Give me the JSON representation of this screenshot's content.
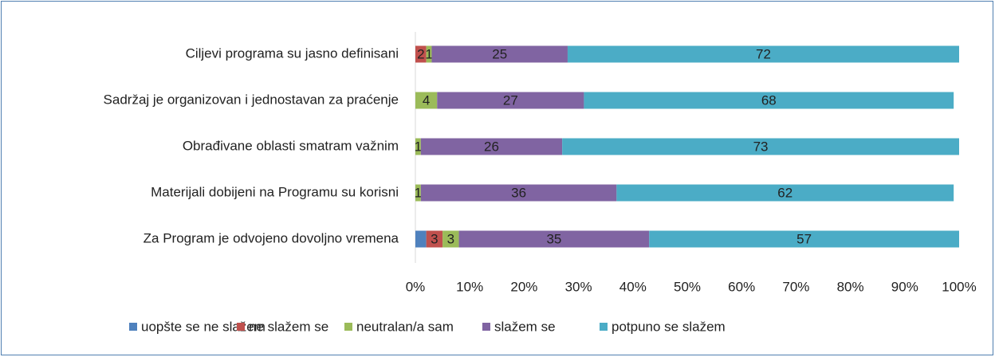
{
  "chart_data": {
    "type": "stacked-barh",
    "categories": [
      "Ciljevi programa su jasno definisani",
      "Sadržaj je organizovan i jednostavan za praćenje",
      "Obrađivane oblasti smatram važnim",
      "Materijali dobijeni na Programu su korisni",
      "Za Program je odvojeno dovoljno vremena"
    ],
    "series": [
      {
        "name": "uopšte se ne slažem",
        "color": "#4f81bd",
        "values": [
          0,
          0,
          0,
          0,
          2
        ],
        "value_labels": [
          null,
          null,
          null,
          null,
          null
        ]
      },
      {
        "name": "ne slažem se",
        "color": "#c0504d",
        "values": [
          2,
          0,
          0,
          0,
          3
        ],
        "value_labels": [
          "2",
          null,
          null,
          null,
          "3"
        ]
      },
      {
        "name": "neutralan/a sam",
        "color": "#9bbb59",
        "values": [
          1,
          4,
          1,
          1,
          3
        ],
        "value_labels": [
          "1",
          "4",
          "1",
          "1",
          "3"
        ]
      },
      {
        "name": "slažem se",
        "color": "#8064a2",
        "values": [
          25,
          27,
          26,
          36,
          35
        ],
        "value_labels": [
          "25",
          "27",
          "26",
          "36",
          "35"
        ]
      },
      {
        "name": "potpuno se slažem",
        "color": "#4bacc6",
        "values": [
          72,
          68,
          73,
          62,
          57
        ],
        "value_labels": [
          "72",
          "68",
          "73",
          "62",
          "57"
        ]
      }
    ],
    "xlim": [
      0,
      100
    ],
    "xticks": [
      {
        "value": 0,
        "label": "0%"
      },
      {
        "value": 10,
        "label": "10%"
      },
      {
        "value": 20,
        "label": "20%"
      },
      {
        "value": 30,
        "label": "30%"
      },
      {
        "value": 40,
        "label": "40%"
      },
      {
        "value": 50,
        "label": "50%"
      },
      {
        "value": 60,
        "label": "60%"
      },
      {
        "value": 70,
        "label": "70%"
      },
      {
        "value": 80,
        "label": "80%"
      },
      {
        "value": 90,
        "label": "90%"
      },
      {
        "value": 100,
        "label": "100%"
      }
    ],
    "grid": false,
    "legend": "bottom"
  }
}
